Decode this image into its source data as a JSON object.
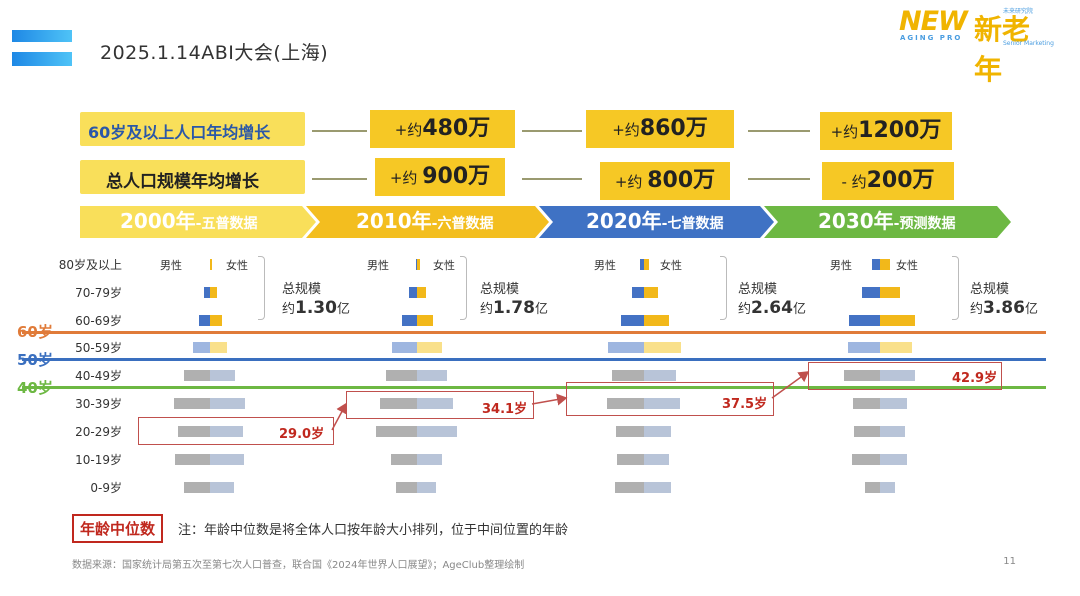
{
  "header": {
    "title": "2025.1.14ABI大会(上海)",
    "brand_new": "NEW",
    "brand_sub": "AGING PRO",
    "brand_cn": "新老年",
    "brand_tiny": "未来研究院",
    "brand_tiny2": "Senior Marketing"
  },
  "rows": {
    "elderly_label": "60岁及以上人口年均增长",
    "total_label": "总人口规模年均增长"
  },
  "columns": [
    {
      "period": "2000年",
      "period_suffix": "-五普数据",
      "color": "#f9df5a",
      "elderly_prefix": "",
      "elderly_value": "",
      "total_prefix": "",
      "total_value": "",
      "total_scale_prefix": "约",
      "total_scale": "1.30",
      "total_scale_unit": "亿",
      "median_age": "29.0岁"
    },
    {
      "period": "2010年",
      "period_suffix": "-六普数据",
      "color": "#f3be1f",
      "elderly_prefix": "+约",
      "elderly_value": "480万",
      "total_prefix": "+约 ",
      "total_value": "900万",
      "total_scale_prefix": "约",
      "total_scale": "1.78",
      "total_scale_unit": "亿",
      "median_age": "34.1岁"
    },
    {
      "period": "2020年",
      "period_suffix": "-七普数据",
      "color": "#3f72c4",
      "elderly_prefix": "+约",
      "elderly_value": "860万",
      "total_prefix": "+约 ",
      "total_value": "800万",
      "total_scale_prefix": "约",
      "total_scale": "2.64",
      "total_scale_unit": "亿",
      "median_age": "37.5岁"
    },
    {
      "period": "2030年",
      "period_suffix": "-预测数据",
      "color": "#6db843",
      "elderly_prefix": "+约",
      "elderly_value": "1200万",
      "total_prefix": "- 约",
      "total_value": "200万",
      "total_scale_prefix": "约",
      "total_scale": "3.86",
      "total_scale_unit": "亿",
      "median_age": "42.9岁"
    }
  ],
  "pyramid_labels": {
    "male": "男性",
    "female": "女性",
    "total_scale_title": "总规模"
  },
  "threshold_lines": [
    {
      "label": "60岁",
      "color": "#e07b39"
    },
    {
      "label": "50岁",
      "color": "#3a6fbf"
    },
    {
      "label": "40岁",
      "color": "#6db843"
    }
  ],
  "chart_data": {
    "type": "bar",
    "title": "",
    "categories": [
      "80岁及以上",
      "70-79岁",
      "60-69岁",
      "50-59岁",
      "40-49岁",
      "30-39岁",
      "20-29岁",
      "10-19岁",
      "0-9岁"
    ],
    "series": [
      {
        "name": "2000年 男性",
        "values": [
          1,
          13,
          22,
          34,
          52,
          72,
          64,
          70,
          52
        ]
      },
      {
        "name": "2000年 女性",
        "values": [
          3,
          14,
          24,
          34,
          49,
          70,
          66,
          68,
          48
        ]
      },
      {
        "name": "2010年 男性",
        "values": [
          3,
          17,
          30,
          50,
          63,
          75,
          82,
          53,
          42
        ]
      },
      {
        "name": "2010年 女性",
        "values": [
          5,
          18,
          32,
          50,
          60,
          72,
          80,
          50,
          38
        ]
      },
      {
        "name": "2020年 男性",
        "values": [
          8,
          25,
          47,
          72,
          64,
          74,
          57,
          54,
          58
        ]
      },
      {
        "name": "2020年 女性",
        "values": [
          10,
          27,
          50,
          73,
          63,
          71,
          54,
          50,
          54
        ]
      },
      {
        "name": "2030年 男性",
        "values": [
          16,
          37,
          63,
          64,
          72,
          55,
          52,
          56,
          31
        ]
      },
      {
        "name": "2030年 女性",
        "values": [
          20,
          40,
          70,
          64,
          70,
          53,
          50,
          54,
          30
        ]
      }
    ],
    "median_ages": [
      29.0,
      34.1,
      37.5,
      42.9
    ],
    "legend": "none"
  },
  "notes": {
    "median_box": "年龄中位数",
    "median_note": "注：年龄中位数是将全体人口按年龄大小排列，位于中间位置的年龄",
    "source": "数据来源：国家统计局第五次至第七次人口普查，联合国《2024年世界人口展望》；AgeClub整理绘制",
    "page_number": "11"
  }
}
